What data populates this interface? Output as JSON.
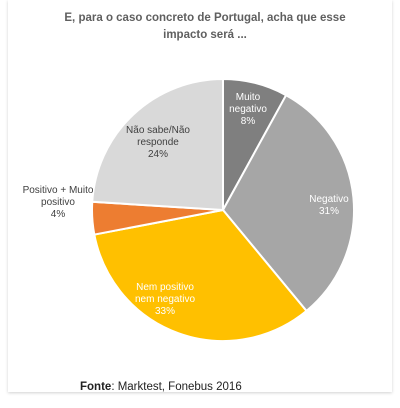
{
  "chart_data": {
    "type": "pie",
    "title": "E, para o caso concreto de Portugal, acha que esse impacto será ...",
    "slices": [
      {
        "label": [
          "Muito",
          "negativo"
        ],
        "value": 8,
        "display": "8%",
        "color": "#7f7f7f",
        "text_color": "#ffffff"
      },
      {
        "label": [
          "Negativo"
        ],
        "value": 31,
        "display": "31%",
        "color": "#a6a6a6",
        "text_color": "#ffffff"
      },
      {
        "label": [
          "Nem positivo",
          "nem negativo"
        ],
        "value": 33,
        "display": "33%",
        "color": "#ffc000",
        "text_color": "#ffffff"
      },
      {
        "label": [
          "Positivo + Muito",
          "positivo"
        ],
        "value": 4,
        "display": "4%",
        "color": "#ed7d31",
        "text_color": "#404040"
      },
      {
        "label": [
          "Não sabe/Não",
          "responde"
        ],
        "value": 24,
        "display": "24%",
        "color": "#d9d9d9",
        "text_color": "#404040"
      }
    ]
  },
  "source": {
    "label": "Fonte",
    "text": ": Marktest, Fonebus 2016"
  }
}
